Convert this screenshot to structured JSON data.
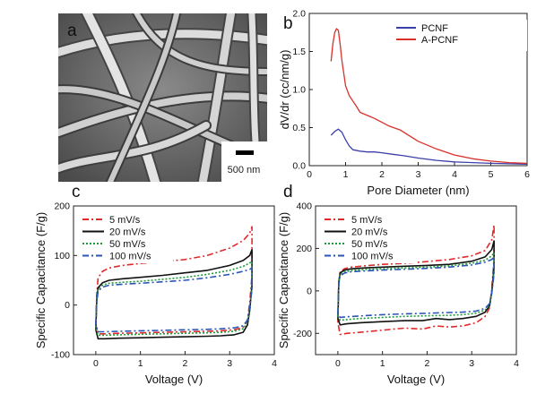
{
  "panels": {
    "a": {
      "letter": "a",
      "scale_bar_label": "500 nm"
    },
    "b": {
      "letter": "b"
    },
    "c": {
      "letter": "c"
    },
    "d": {
      "letter": "d"
    }
  },
  "chart_data": [
    {
      "panel": "b",
      "type": "line",
      "xlabel": "Pore Diameter (nm)",
      "ylabel": "dV/dr (cc/nm/g)",
      "xlim": [
        0,
        6
      ],
      "ylim": [
        0,
        2.0
      ],
      "xticks": [
        0,
        1,
        2,
        3,
        4,
        5,
        6
      ],
      "yticks": [
        0.0,
        0.5,
        1.0,
        1.5,
        2.0
      ],
      "grid": false,
      "legend_position": "top-right",
      "series": [
        {
          "name": "PCNF",
          "color": "#3b3fa8",
          "style": "solid",
          "x": [
            0.6,
            0.7,
            0.8,
            0.9,
            1.0,
            1.1,
            1.2,
            1.4,
            1.6,
            1.8,
            2.0,
            2.3,
            2.6,
            3.0,
            3.5,
            4.0,
            5.0,
            6.0
          ],
          "y": [
            0.4,
            0.45,
            0.48,
            0.44,
            0.34,
            0.26,
            0.21,
            0.19,
            0.18,
            0.18,
            0.17,
            0.15,
            0.13,
            0.1,
            0.07,
            0.05,
            0.03,
            0.02
          ]
        },
        {
          "name": "A-PCNF",
          "color": "#d9302a",
          "style": "solid",
          "x": [
            0.6,
            0.65,
            0.7,
            0.75,
            0.8,
            0.85,
            0.9,
            1.0,
            1.1,
            1.2,
            1.3,
            1.4,
            1.6,
            1.8,
            2.0,
            2.2,
            2.5,
            2.8,
            3.0,
            3.5,
            4.0,
            4.5,
            5.0,
            5.5,
            6.0
          ],
          "y": [
            1.37,
            1.6,
            1.75,
            1.8,
            1.78,
            1.6,
            1.38,
            1.05,
            0.92,
            0.85,
            0.78,
            0.7,
            0.66,
            0.62,
            0.57,
            0.52,
            0.47,
            0.38,
            0.32,
            0.22,
            0.14,
            0.09,
            0.06,
            0.04,
            0.03
          ]
        }
      ]
    },
    {
      "panel": "c",
      "type": "line",
      "xlabel": "Voltage (V)",
      "ylabel": "Specific Capacitance (F/g)",
      "xlim": [
        -0.5,
        4
      ],
      "ylim": [
        -100,
        200
      ],
      "xticks": [
        0,
        1,
        2,
        3,
        4
      ],
      "yticks": [
        -100,
        0,
        100,
        200
      ],
      "grid": false,
      "legend_position": "top-left",
      "series": [
        {
          "name": "5 mV/s",
          "color": "#e02a2a",
          "style": "dashdot",
          "x": [
            0.0,
            0.02,
            0.05,
            0.15,
            0.3,
            0.6,
            1.0,
            1.5,
            2.0,
            2.5,
            3.0,
            3.3,
            3.45,
            3.5,
            3.5,
            3.45,
            3.4,
            3.3,
            3.1,
            2.8,
            2.5,
            2.0,
            1.5,
            1.0,
            0.5,
            0.2,
            0.05,
            0.0
          ],
          "y": [
            -40,
            20,
            55,
            68,
            75,
            80,
            84,
            88,
            92,
            100,
            115,
            130,
            145,
            158,
            60,
            5,
            -30,
            -45,
            -50,
            -52,
            -53,
            -54,
            -55,
            -56,
            -57,
            -58,
            -58,
            -40
          ]
        },
        {
          "name": "20 mV/s",
          "color": "#111111",
          "style": "solid",
          "x": [
            0.0,
            0.02,
            0.05,
            0.15,
            0.3,
            0.6,
            1.0,
            1.5,
            2.0,
            2.5,
            3.0,
            3.3,
            3.45,
            3.5,
            3.5,
            3.45,
            3.4,
            3.3,
            3.1,
            2.8,
            2.5,
            2.0,
            1.5,
            1.0,
            0.5,
            0.2,
            0.05,
            0.0
          ],
          "y": [
            -50,
            10,
            35,
            45,
            50,
            53,
            56,
            60,
            65,
            70,
            80,
            90,
            100,
            112,
            40,
            -10,
            -40,
            -55,
            -60,
            -62,
            -63,
            -64,
            -65,
            -66,
            -67,
            -68,
            -68,
            -50
          ]
        },
        {
          "name": "50 mV/s",
          "color": "#1f9a3a",
          "style": "dotted",
          "x": [
            0.0,
            0.02,
            0.05,
            0.15,
            0.3,
            0.6,
            1.0,
            1.5,
            2.0,
            2.5,
            3.0,
            3.3,
            3.45,
            3.5,
            3.5,
            3.45,
            3.4,
            3.3,
            3.1,
            2.8,
            2.5,
            2.0,
            1.5,
            1.0,
            0.5,
            0.2,
            0.05,
            0.0
          ],
          "y": [
            -45,
            10,
            32,
            40,
            44,
            46,
            48,
            52,
            56,
            62,
            70,
            78,
            85,
            88,
            35,
            -5,
            -35,
            -48,
            -53,
            -55,
            -56,
            -57,
            -58,
            -59,
            -60,
            -61,
            -61,
            -45
          ]
        },
        {
          "name": "100 mV/s",
          "color": "#2a55b8",
          "style": "dashdot",
          "x": [
            0.0,
            0.02,
            0.05,
            0.15,
            0.3,
            0.6,
            1.0,
            1.5,
            2.0,
            2.5,
            3.0,
            3.3,
            3.45,
            3.5,
            3.5,
            3.45,
            3.4,
            3.3,
            3.1,
            2.8,
            2.5,
            2.0,
            1.5,
            1.0,
            0.5,
            0.2,
            0.05,
            0.0
          ],
          "y": [
            -40,
            5,
            28,
            36,
            40,
            42,
            44,
            47,
            50,
            55,
            62,
            68,
            72,
            75,
            30,
            0,
            -30,
            -42,
            -46,
            -48,
            -49,
            -50,
            -51,
            -52,
            -53,
            -54,
            -54,
            -40
          ]
        }
      ]
    },
    {
      "panel": "d",
      "type": "line",
      "xlabel": "Voltage (V)",
      "ylabel": "Specific Capacitance (F/g)",
      "xlim": [
        -0.5,
        4
      ],
      "ylim": [
        -300,
        400
      ],
      "xticks": [
        0,
        1,
        2,
        3,
        4
      ],
      "yticks": [
        -200,
        0,
        200,
        400
      ],
      "grid": false,
      "legend_position": "top-left",
      "series": [
        {
          "name": "5 mV/s",
          "color": "#e02a2a",
          "style": "dashdot",
          "x": [
            0.0,
            0.02,
            0.05,
            0.15,
            0.3,
            0.6,
            1.0,
            1.5,
            2.0,
            2.5,
            3.0,
            3.3,
            3.45,
            3.5,
            3.5,
            3.45,
            3.4,
            3.3,
            3.1,
            2.8,
            2.5,
            2.2,
            1.9,
            1.5,
            1.0,
            0.5,
            0.2,
            0.05,
            0.0
          ],
          "y": [
            -150,
            40,
            90,
            105,
            112,
            118,
            125,
            130,
            138,
            148,
            165,
            190,
            240,
            310,
            150,
            10,
            -80,
            -120,
            -150,
            -165,
            -170,
            -165,
            -180,
            -175,
            -185,
            -195,
            -200,
            -205,
            -150
          ]
        },
        {
          "name": "20 mV/s",
          "color": "#111111",
          "style": "solid",
          "x": [
            0.0,
            0.02,
            0.05,
            0.15,
            0.3,
            0.6,
            1.0,
            1.5,
            2.0,
            2.5,
            3.0,
            3.3,
            3.45,
            3.5,
            3.5,
            3.45,
            3.4,
            3.3,
            3.1,
            2.8,
            2.5,
            2.2,
            1.9,
            1.5,
            1.0,
            0.5,
            0.2,
            0.05,
            0.0
          ],
          "y": [
            -130,
            40,
            85,
            98,
            104,
            108,
            112,
            116,
            120,
            125,
            140,
            160,
            195,
            235,
            110,
            -5,
            -70,
            -100,
            -120,
            -130,
            -135,
            -130,
            -140,
            -140,
            -145,
            -150,
            -155,
            -160,
            -130
          ]
        },
        {
          "name": "50 mV/s",
          "color": "#1f9a3a",
          "style": "dotted",
          "x": [
            0.0,
            0.02,
            0.05,
            0.15,
            0.3,
            0.6,
            1.0,
            1.5,
            2.0,
            2.5,
            3.0,
            3.3,
            3.45,
            3.5,
            3.5,
            3.45,
            3.4,
            3.3,
            3.1,
            2.8,
            2.5,
            2.2,
            1.9,
            1.5,
            1.0,
            0.5,
            0.2,
            0.05,
            0.0
          ],
          "y": [
            -120,
            35,
            78,
            90,
            96,
            100,
            104,
            108,
            112,
            118,
            130,
            145,
            165,
            180,
            90,
            -10,
            -65,
            -90,
            -105,
            -112,
            -115,
            -116,
            -118,
            -120,
            -125,
            -130,
            -135,
            -138,
            -120
          ]
        },
        {
          "name": "100 mV/s",
          "color": "#2a55b8",
          "style": "dashdot",
          "x": [
            0.0,
            0.02,
            0.05,
            0.15,
            0.3,
            0.6,
            1.0,
            1.5,
            2.0,
            2.5,
            3.0,
            3.3,
            3.45,
            3.5,
            3.5,
            3.45,
            3.4,
            3.3,
            3.1,
            2.8,
            2.5,
            2.2,
            1.9,
            1.5,
            1.0,
            0.5,
            0.2,
            0.05,
            0.0
          ],
          "y": [
            -110,
            30,
            72,
            84,
            90,
            94,
            98,
            102,
            106,
            112,
            122,
            135,
            148,
            160,
            80,
            -10,
            -60,
            -82,
            -95,
            -100,
            -102,
            -104,
            -106,
            -108,
            -112,
            -118,
            -122,
            -125,
            -110
          ]
        }
      ]
    }
  ]
}
